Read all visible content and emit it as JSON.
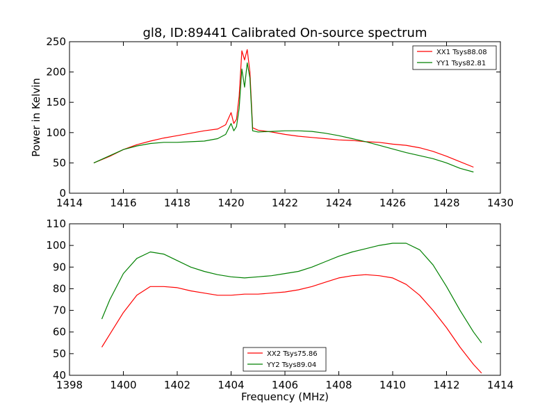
{
  "chart_data": [
    {
      "type": "line",
      "title": "gl8, ID:89441 Calibrated On-source spectrum",
      "xlabel": "",
      "ylabel": "Power in Kelvin",
      "xlim": [
        1414,
        1430
      ],
      "ylim": [
        0,
        250
      ],
      "xticks": [
        "1414",
        "1416",
        "1418",
        "1420",
        "1422",
        "1424",
        "1426",
        "1428",
        "1430"
      ],
      "yticks": [
        "0",
        "50",
        "100",
        "150",
        "200",
        "250"
      ],
      "grid": false,
      "legend_position": "top-right",
      "series": [
        {
          "name": "XX1 Tsys88.08",
          "color": "#ff0000",
          "x": [
            1414.9,
            1415.5,
            1416.0,
            1416.5,
            1417.0,
            1417.5,
            1418.0,
            1418.5,
            1419.0,
            1419.5,
            1419.8,
            1420.0,
            1420.1,
            1420.2,
            1420.3,
            1420.4,
            1420.5,
            1420.6,
            1420.7,
            1420.8,
            1421.0,
            1421.5,
            1422.0,
            1422.5,
            1423.0,
            1423.5,
            1424.0,
            1424.5,
            1425.0,
            1425.5,
            1426.0,
            1426.5,
            1427.0,
            1427.5,
            1428.0,
            1428.5,
            1429.0
          ],
          "y": [
            50,
            61,
            72,
            80,
            86,
            91,
            95,
            99,
            103,
            106,
            113,
            133,
            115,
            122,
            160,
            235,
            220,
            237,
            200,
            108,
            104,
            101,
            97,
            94,
            92,
            90,
            88,
            87,
            85,
            84,
            81,
            79,
            75,
            69,
            61,
            52,
            43
          ]
        },
        {
          "name": "YY1 Tsys82.81",
          "color": "#008000",
          "x": [
            1414.9,
            1415.5,
            1416.0,
            1416.5,
            1417.0,
            1417.5,
            1418.0,
            1418.5,
            1419.0,
            1419.5,
            1419.8,
            1420.0,
            1420.1,
            1420.2,
            1420.3,
            1420.4,
            1420.5,
            1420.6,
            1420.7,
            1420.8,
            1421.0,
            1421.5,
            1422.0,
            1422.5,
            1423.0,
            1423.5,
            1424.0,
            1424.5,
            1425.0,
            1425.5,
            1426.0,
            1426.5,
            1427.0,
            1427.5,
            1428.0,
            1428.5,
            1429.0
          ],
          "y": [
            50,
            62,
            72,
            78,
            82,
            84,
            84,
            85,
            86,
            90,
            97,
            115,
            103,
            110,
            140,
            205,
            175,
            215,
            190,
            103,
            101,
            102,
            103,
            103,
            102,
            99,
            95,
            90,
            85,
            79,
            73,
            67,
            62,
            57,
            50,
            41,
            35
          ]
        }
      ]
    },
    {
      "type": "line",
      "title": "",
      "xlabel": "Frequency (MHz)",
      "ylabel": "",
      "xlim": [
        1398,
        1414
      ],
      "ylim": [
        40,
        110
      ],
      "xticks": [
        "1398",
        "1400",
        "1402",
        "1404",
        "1406",
        "1408",
        "1410",
        "1412",
        "1414"
      ],
      "yticks": [
        "40",
        "50",
        "60",
        "70",
        "80",
        "90",
        "100",
        "110"
      ],
      "grid": false,
      "legend_position": "bottom-center",
      "series": [
        {
          "name": "XX2 Tsys75.86",
          "color": "#ff0000",
          "x": [
            1399.2,
            1399.5,
            1400.0,
            1400.5,
            1401.0,
            1401.5,
            1402.0,
            1402.5,
            1403.0,
            1403.5,
            1404.0,
            1404.5,
            1405.0,
            1405.5,
            1406.0,
            1406.5,
            1407.0,
            1407.5,
            1408.0,
            1408.5,
            1409.0,
            1409.5,
            1410.0,
            1410.5,
            1411.0,
            1411.5,
            1412.0,
            1412.5,
            1413.0,
            1413.3
          ],
          "y": [
            53,
            59,
            69,
            77,
            81,
            81,
            80.5,
            79,
            78,
            77,
            77,
            77.5,
            77.5,
            78,
            78.5,
            79.5,
            81,
            83,
            85,
            86,
            86.5,
            86,
            85,
            82,
            77,
            70,
            62,
            53,
            45,
            41
          ]
        },
        {
          "name": "YY2 Tsys89.04",
          "color": "#008000",
          "x": [
            1399.2,
            1399.5,
            1400.0,
            1400.5,
            1401.0,
            1401.5,
            1402.0,
            1402.5,
            1403.0,
            1403.5,
            1404.0,
            1404.5,
            1405.0,
            1405.5,
            1406.0,
            1406.5,
            1407.0,
            1407.5,
            1408.0,
            1408.5,
            1409.0,
            1409.5,
            1410.0,
            1410.5,
            1411.0,
            1411.5,
            1412.0,
            1412.5,
            1413.0,
            1413.3
          ],
          "y": [
            66,
            75,
            87,
            94,
            97,
            96,
            93,
            90,
            88,
            86.5,
            85.5,
            85,
            85.5,
            86,
            87,
            88,
            90,
            92.5,
            95,
            97,
            98.5,
            100,
            101,
            101,
            98,
            91,
            81,
            70,
            60,
            55
          ]
        }
      ]
    }
  ]
}
